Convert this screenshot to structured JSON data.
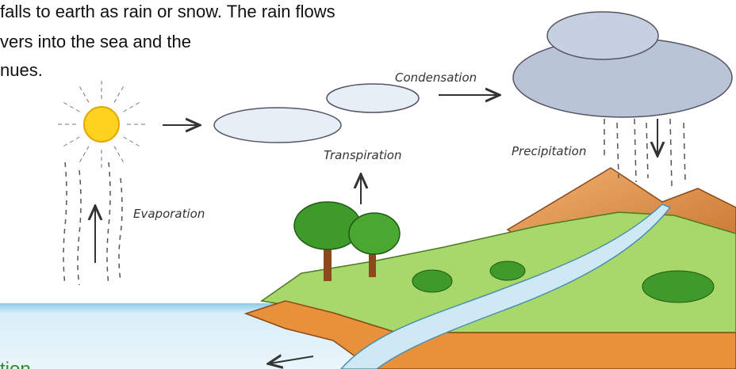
{
  "paragraph_lines": [
    "falls to earth as rain or snow. The rain flows",
    "vers into the sea and the",
    "nues."
  ],
  "labels": {
    "condensation": "Condensation",
    "transpiration": "Transpiration",
    "precipitation": "Precipitation",
    "evaporation": "Evaporation"
  },
  "caption": "tion"
}
